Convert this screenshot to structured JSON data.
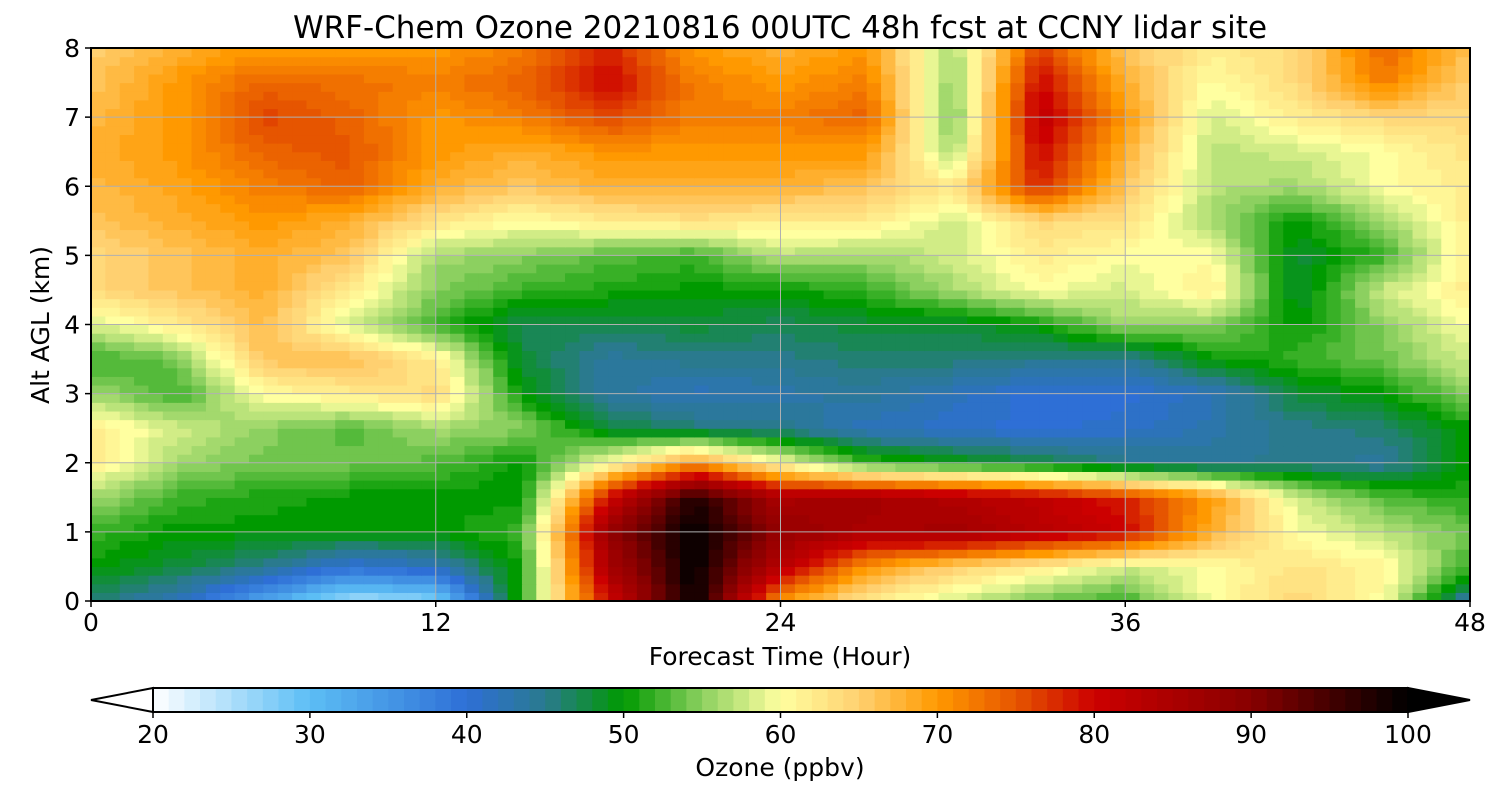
{
  "chart_data": {
    "type": "heatmap",
    "title": "WRF-Chem Ozone  20210816 00UTC 48h fcst at CCNY lidar site",
    "xlabel": "Forecast Time (Hour)",
    "ylabel": "Alt AGL (km)",
    "xlim": [
      0,
      48
    ],
    "ylim": [
      0,
      8
    ],
    "xticks": [
      "0",
      "12",
      "24",
      "36",
      "48"
    ],
    "yticks": [
      "0",
      "1",
      "2",
      "3",
      "4",
      "5",
      "6",
      "7",
      "8"
    ],
    "grid": true,
    "x": [
      0,
      3,
      6,
      9,
      12,
      15,
      18,
      21,
      24,
      27,
      30,
      33,
      36,
      39,
      42,
      45,
      48
    ],
    "y": [
      0,
      0.5,
      1,
      1.5,
      2,
      2.5,
      3,
      3.5,
      4,
      4.5,
      5,
      5.5,
      6,
      6.5,
      7,
      7.5,
      8
    ],
    "z": [
      [
        46,
        42,
        33,
        25,
        27,
        52,
        80,
        100,
        70,
        62,
        58,
        54,
        52,
        60,
        64,
        60,
        43
      ],
      [
        50,
        48,
        45,
        40,
        42,
        51,
        85,
        100,
        83,
        70,
        65,
        62,
        58,
        60,
        63,
        61,
        52
      ],
      [
        52,
        50,
        50,
        50,
        50,
        52,
        88,
        100,
        88,
        85,
        86,
        83,
        80,
        68,
        60,
        57,
        54
      ],
      [
        56,
        52,
        51,
        50,
        50,
        50,
        80,
        98,
        85,
        86,
        84,
        82,
        78,
        70,
        58,
        53,
        51
      ],
      [
        62,
        56,
        54,
        54,
        53,
        50,
        60,
        70,
        60,
        52,
        50,
        48,
        45,
        44,
        45,
        44,
        50
      ],
      [
        62,
        58,
        55,
        53,
        56,
        55,
        48,
        46,
        45,
        42,
        41,
        40,
        41,
        43,
        45,
        46,
        50
      ],
      [
        56,
        52,
        60,
        62,
        64,
        50,
        44,
        42,
        43,
        44,
        42,
        40,
        40,
        42,
        48,
        50,
        55
      ],
      [
        52,
        54,
        66,
        67,
        62,
        48,
        44,
        45,
        45,
        46,
        46,
        45,
        44,
        50,
        52,
        54,
        58
      ],
      [
        58,
        62,
        67,
        58,
        52,
        47,
        47,
        48,
        47,
        48,
        48,
        50,
        56,
        55,
        50,
        55,
        60
      ],
      [
        64,
        66,
        68,
        62,
        55,
        52,
        51,
        50,
        50,
        52,
        56,
        60,
        58,
        62,
        48,
        58,
        62
      ],
      [
        64,
        66,
        68,
        66,
        56,
        55,
        53,
        52,
        57,
        56,
        58,
        62,
        60,
        60,
        48,
        52,
        62
      ],
      [
        66,
        68,
        70,
        68,
        63,
        60,
        62,
        63,
        62,
        62,
        58,
        64,
        63,
        56,
        50,
        56,
        62
      ],
      [
        67,
        69,
        72,
        74,
        68,
        66,
        68,
        68,
        68,
        66,
        62,
        78,
        66,
        57,
        56,
        60,
        62
      ],
      [
        68,
        70,
        74,
        75,
        70,
        68,
        70,
        70,
        70,
        70,
        56,
        80,
        68,
        57,
        58,
        60,
        63
      ],
      [
        67,
        70,
        76,
        74,
        70,
        72,
        76,
        72,
        72,
        74,
        54,
        82,
        70,
        58,
        62,
        64,
        64
      ],
      [
        66,
        70,
        74,
        73,
        72,
        74,
        80,
        72,
        70,
        72,
        55,
        80,
        68,
        60,
        64,
        72,
        65
      ],
      [
        65,
        68,
        70,
        70,
        70,
        72,
        78,
        70,
        68,
        70,
        56,
        76,
        66,
        62,
        64,
        74,
        66
      ]
    ],
    "colorbar": {
      "label": "Ozone  (ppbv)",
      "min": 20,
      "max": 100,
      "extend": "both",
      "ticks": [
        "20",
        "30",
        "40",
        "50",
        "60",
        "70",
        "80",
        "90",
        "100"
      ],
      "stops": [
        {
          "v": 20,
          "c": "#ffffff"
        },
        {
          "v": 30,
          "c": "#5cbef5"
        },
        {
          "v": 40,
          "c": "#2e6fd6"
        },
        {
          "v": 45,
          "c": "#2a7a8e"
        },
        {
          "v": 50,
          "c": "#009a00"
        },
        {
          "v": 55,
          "c": "#8cd060"
        },
        {
          "v": 60,
          "c": "#ffffa0"
        },
        {
          "v": 65,
          "c": "#ffd070"
        },
        {
          "v": 70,
          "c": "#ff9900"
        },
        {
          "v": 75,
          "c": "#e65500"
        },
        {
          "v": 80,
          "c": "#cc0000"
        },
        {
          "v": 90,
          "c": "#880000"
        },
        {
          "v": 100,
          "c": "#000000"
        }
      ]
    }
  }
}
